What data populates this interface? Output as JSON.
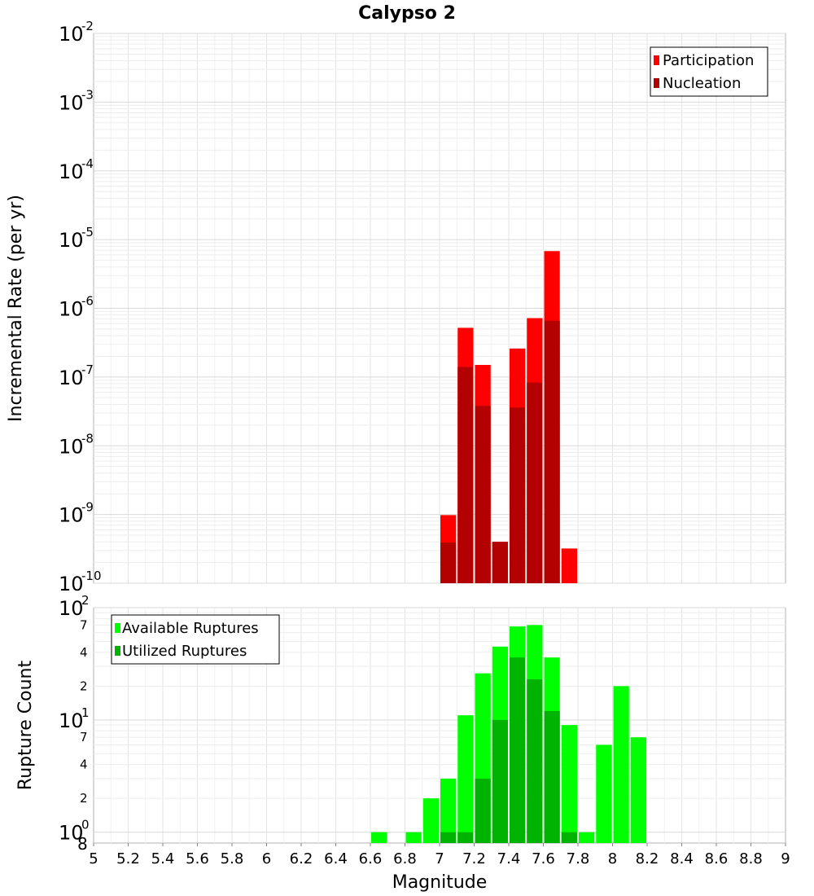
{
  "chart_data": [
    {
      "type": "bar",
      "title": "Calypso 2",
      "xlabel": "",
      "ylabel": "Incremental Rate (per yr)",
      "y_scale": "log",
      "ylim": [
        1e-10,
        0.01
      ],
      "xlim": [
        5,
        9
      ],
      "bin_width": 0.1,
      "grid": true,
      "legend_position": "top-right",
      "y_tick_labels": [
        {
          "base": "10",
          "exp": "-10",
          "value": 1e-10
        },
        {
          "base": "10",
          "exp": "-9",
          "value": 1e-09
        },
        {
          "base": "10",
          "exp": "-8",
          "value": 1e-08
        },
        {
          "base": "10",
          "exp": "-7",
          "value": 1e-07
        },
        {
          "base": "10",
          "exp": "-6",
          "value": 1e-06
        },
        {
          "base": "10",
          "exp": "-5",
          "value": 1e-05
        },
        {
          "base": "10",
          "exp": "-4",
          "value": 0.0001
        },
        {
          "base": "10",
          "exp": "-3",
          "value": 0.001
        },
        {
          "base": "10",
          "exp": "-2",
          "value": 0.01
        }
      ],
      "series": [
        {
          "name": "Participation",
          "color": "#ff0000",
          "points": [
            {
              "x": 7.05,
              "y": 9.8e-10
            },
            {
              "x": 7.15,
              "y": 5.2e-07
            },
            {
              "x": 7.25,
              "y": 1.5e-07
            },
            {
              "x": 7.35,
              "y": 4e-10
            },
            {
              "x": 7.45,
              "y": 2.6e-07
            },
            {
              "x": 7.55,
              "y": 7.2e-07
            },
            {
              "x": 7.65,
              "y": 6.8e-06
            },
            {
              "x": 7.75,
              "y": 3.2e-10
            }
          ]
        },
        {
          "name": "Nucleation",
          "color": "#b30000",
          "points": [
            {
              "x": 7.05,
              "y": 3.9e-10
            },
            {
              "x": 7.15,
              "y": 1.4e-07
            },
            {
              "x": 7.25,
              "y": 3.8e-08
            },
            {
              "x": 7.35,
              "y": 4e-10
            },
            {
              "x": 7.45,
              "y": 3.6e-08
            },
            {
              "x": 7.55,
              "y": 8.3e-08
            },
            {
              "x": 7.65,
              "y": 6.6e-07
            }
          ]
        }
      ]
    },
    {
      "type": "bar",
      "xlabel": "Magnitude",
      "ylabel": "Rupture Count",
      "y_scale": "log",
      "ylim": [
        0.8,
        100
      ],
      "xlim": [
        5,
        9
      ],
      "bin_width": 0.1,
      "grid": true,
      "legend_position": "top-left",
      "x_ticks": [
        "5",
        "5.2",
        "5.4",
        "5.6",
        "5.8",
        "6",
        "6.2",
        "6.4",
        "6.6",
        "6.8",
        "7",
        "7.2",
        "7.4",
        "7.6",
        "7.8",
        "8",
        "8.2",
        "8.4",
        "8.6",
        "8.8",
        "9"
      ],
      "y_tick_labels": [
        {
          "base": "10",
          "exp": "0",
          "value": 1
        },
        {
          "base": "10",
          "exp": "1",
          "value": 10
        },
        {
          "base": "10",
          "exp": "2",
          "value": 100
        }
      ],
      "y_minor_tick_labels": [
        {
          "label": "8",
          "value": 0.8
        },
        {
          "label": "2",
          "value": 2
        },
        {
          "label": "4",
          "value": 4
        },
        {
          "label": "7",
          "value": 7
        },
        {
          "label": "2",
          "value": 20
        },
        {
          "label": "4",
          "value": 40
        },
        {
          "label": "7",
          "value": 70
        }
      ],
      "series": [
        {
          "name": "Available Ruptures",
          "color": "#00ff00",
          "points": [
            {
              "x": 6.65,
              "y": 1
            },
            {
              "x": 6.85,
              "y": 1
            },
            {
              "x": 6.95,
              "y": 2
            },
            {
              "x": 7.05,
              "y": 3
            },
            {
              "x": 7.15,
              "y": 11
            },
            {
              "x": 7.25,
              "y": 26
            },
            {
              "x": 7.35,
              "y": 45
            },
            {
              "x": 7.45,
              "y": 68
            },
            {
              "x": 7.55,
              "y": 70
            },
            {
              "x": 7.65,
              "y": 36
            },
            {
              "x": 7.75,
              "y": 9
            },
            {
              "x": 7.85,
              "y": 1
            },
            {
              "x": 7.95,
              "y": 6
            },
            {
              "x": 8.05,
              "y": 20
            },
            {
              "x": 8.15,
              "y": 7
            }
          ]
        },
        {
          "name": "Utilized Ruptures",
          "color": "#00b300",
          "points": [
            {
              "x": 7.05,
              "y": 1
            },
            {
              "x": 7.15,
              "y": 1
            },
            {
              "x": 7.25,
              "y": 3
            },
            {
              "x": 7.35,
              "y": 10
            },
            {
              "x": 7.45,
              "y": 36
            },
            {
              "x": 7.55,
              "y": 23
            },
            {
              "x": 7.65,
              "y": 12
            },
            {
              "x": 7.75,
              "y": 1
            }
          ]
        }
      ]
    }
  ]
}
